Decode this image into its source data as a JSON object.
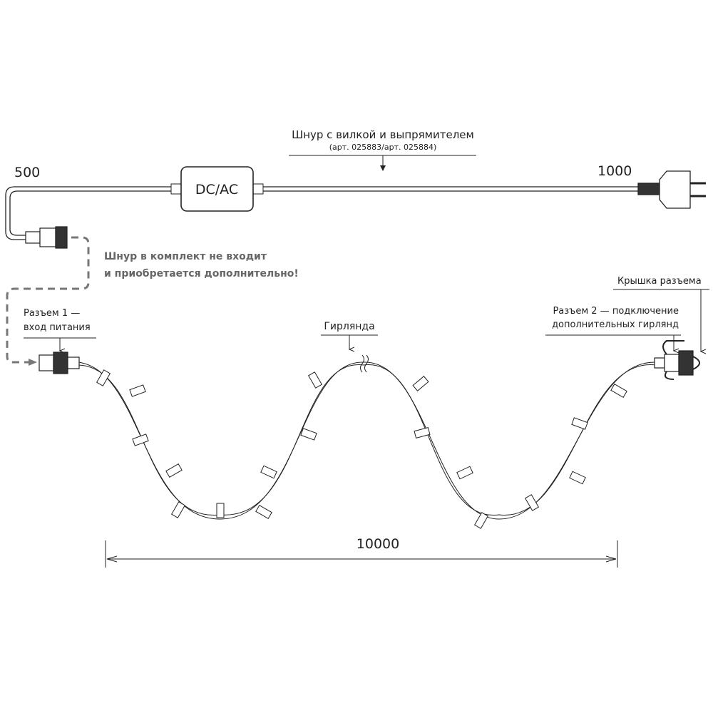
{
  "cord_label": {
    "title": "Шнур с вилкой и выпрямителем",
    "article": "(арт. 025883/арт. 025884)"
  },
  "dim_500": "500",
  "dim_1000": "1000",
  "dim_10000": "10000",
  "converter_label": "DC/AC",
  "note": {
    "line1": "Шнур в комплект не входит",
    "line2": "и приобретается дополнительно!"
  },
  "connector1": {
    "line1": "Разъем 1 —",
    "line2": "вход питания"
  },
  "garland_label": "Гирлянда",
  "cap_label": "Крышка разъема",
  "connector2": {
    "line1": "Разъем 2 — подключение",
    "line2": "дополнительных гирлянд"
  },
  "colors": {
    "line": "#222222",
    "dashed": "#777777",
    "note": "#666666"
  }
}
